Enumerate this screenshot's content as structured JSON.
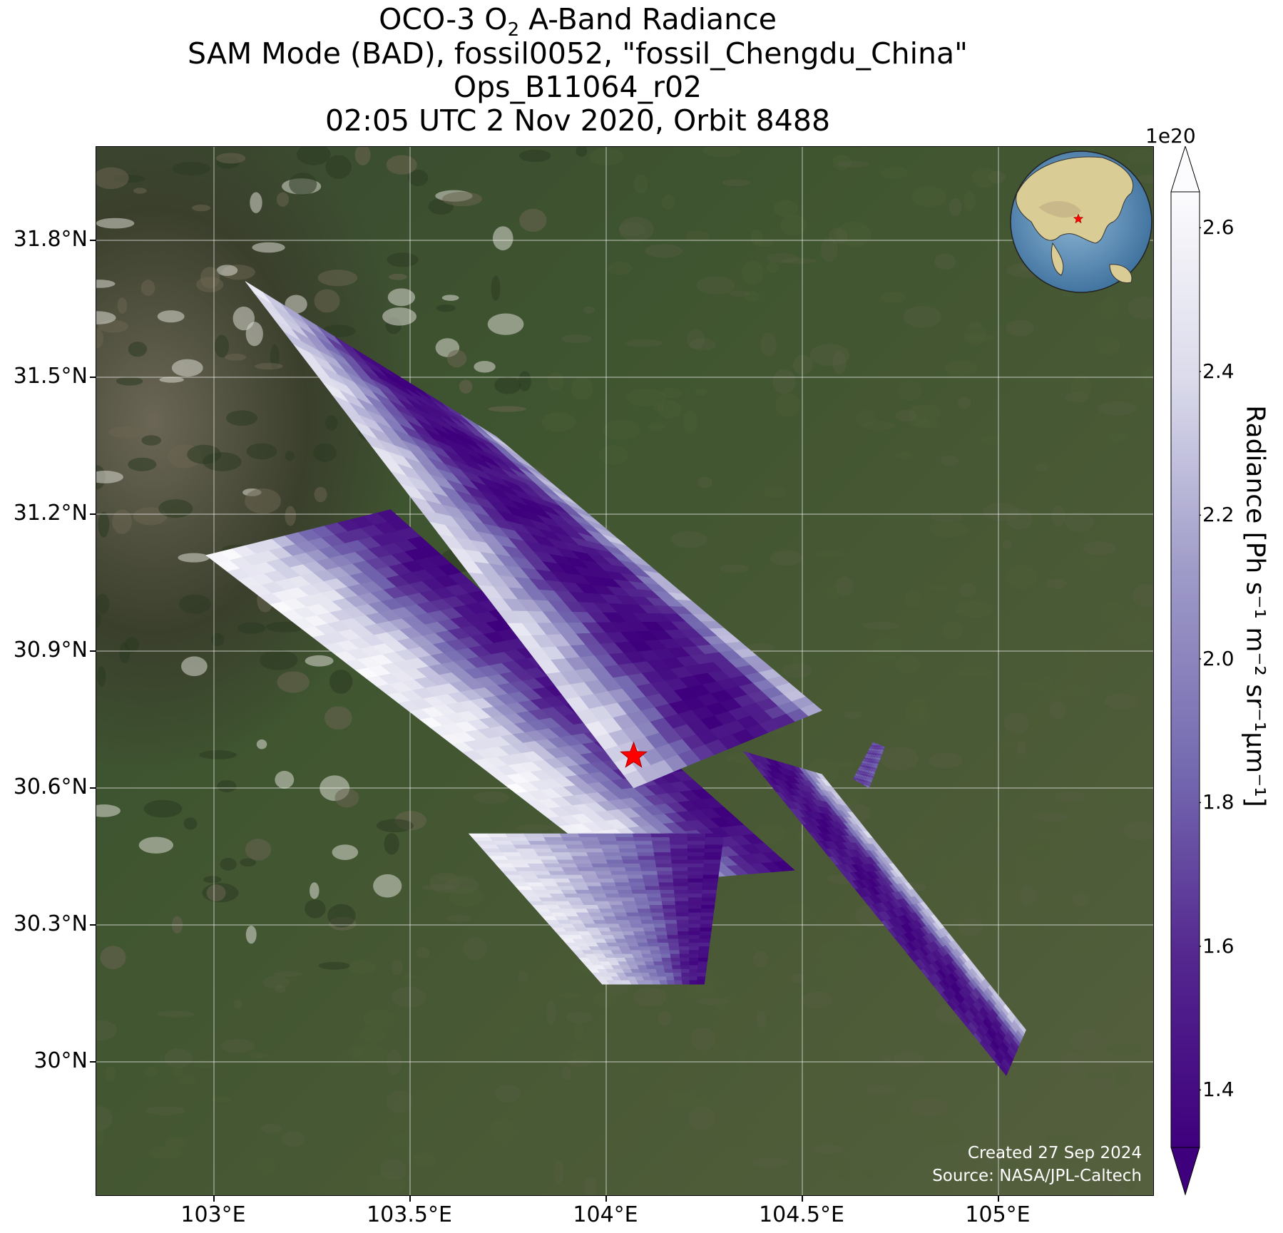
{
  "title": {
    "line1_prefix": "OCO-3 O",
    "line1_sub": "2",
    "line1_suffix": " A-Band Radiance",
    "line2": "SAM Mode (BAD), fossil0052, \"fossil_Chengdu_China\"",
    "line3": "Ops_B11064_r02",
    "line4": "02:05 UTC 2 Nov 2020, Orbit 8488"
  },
  "map": {
    "lon_range": [
      102.7,
      105.4
    ],
    "lat_range": [
      29.7,
      32.0
    ],
    "lon_ticks": [
      103.0,
      103.5,
      104.0,
      104.5,
      105.0
    ],
    "lat_ticks": [
      30.0,
      30.3,
      30.6,
      30.9,
      31.2,
      31.5,
      31.8
    ],
    "lon_tick_labels": [
      "103°E",
      "103.5°E",
      "104°E",
      "104.5°E",
      "105°E"
    ],
    "lat_tick_labels": [
      "30°N",
      "30.3°N",
      "30.6°N",
      "30.9°N",
      "31.2°N",
      "31.5°N",
      "31.8°N"
    ],
    "target_marker": {
      "lon": 104.07,
      "lat": 30.67,
      "color": "#ff0000",
      "icon": "red-star-icon"
    },
    "inset": {
      "type": "globe",
      "marker_color": "#ff0000",
      "icon": "globe-icon"
    },
    "background": "satellite imagery"
  },
  "chart_data": {
    "type": "heatmap",
    "variable": "Radiance",
    "colormap": "Purples_r",
    "extend": "both",
    "vmin": 1.32,
    "vmax": 2.65,
    "ticks": [
      1.4,
      1.6,
      1.8,
      2.0,
      2.2,
      2.4,
      2.6
    ],
    "tick_labels": [
      "1.4",
      "1.6",
      "1.8",
      "2.0",
      "2.2",
      "2.4",
      "2.6"
    ],
    "scale_label": "1e20",
    "units_label": "Radiance [Ph s⁻¹ m⁻² sr⁻¹μm⁻¹]",
    "swaths": [
      {
        "corners_lonlat": [
          [
            102.98,
            31.11
          ],
          [
            103.45,
            31.21
          ],
          [
            104.48,
            30.42
          ],
          [
            104.07,
            30.39
          ]
        ],
        "profile": [
          2.55,
          2.5,
          2.35,
          2.0,
          1.7,
          1.45,
          1.36
        ]
      },
      {
        "corners_lonlat": [
          [
            103.65,
            30.5
          ],
          [
            104.3,
            30.5
          ],
          [
            104.25,
            30.17
          ],
          [
            103.99,
            30.17
          ]
        ],
        "profile": [
          2.5,
          2.4,
          2.2,
          2.0,
          1.8,
          1.5,
          1.4
        ]
      },
      {
        "corners_lonlat": [
          [
            103.08,
            31.71
          ],
          [
            103.72,
            31.37
          ],
          [
            104.55,
            30.77
          ],
          [
            104.07,
            30.6
          ]
        ],
        "profile": [
          2.45,
          2.2,
          1.75,
          1.38,
          1.38,
          1.6,
          2.35
        ]
      },
      {
        "corners_lonlat": [
          [
            104.35,
            30.68
          ],
          [
            104.55,
            30.63
          ],
          [
            105.07,
            30.07
          ],
          [
            105.02,
            29.97
          ]
        ],
        "profile": [
          1.55,
          1.45,
          1.38,
          1.45,
          1.6,
          2.1,
          2.35
        ]
      },
      {
        "corners_lonlat": [
          [
            104.68,
            30.7
          ],
          [
            104.71,
            30.69
          ],
          [
            104.67,
            30.6
          ],
          [
            104.63,
            30.62
          ]
        ],
        "profile": [
          1.75,
          1.7,
          1.8
        ]
      }
    ]
  },
  "credits": {
    "created": "Created 27 Sep 2024",
    "source": "Source: NASA/JPL-Caltech"
  }
}
